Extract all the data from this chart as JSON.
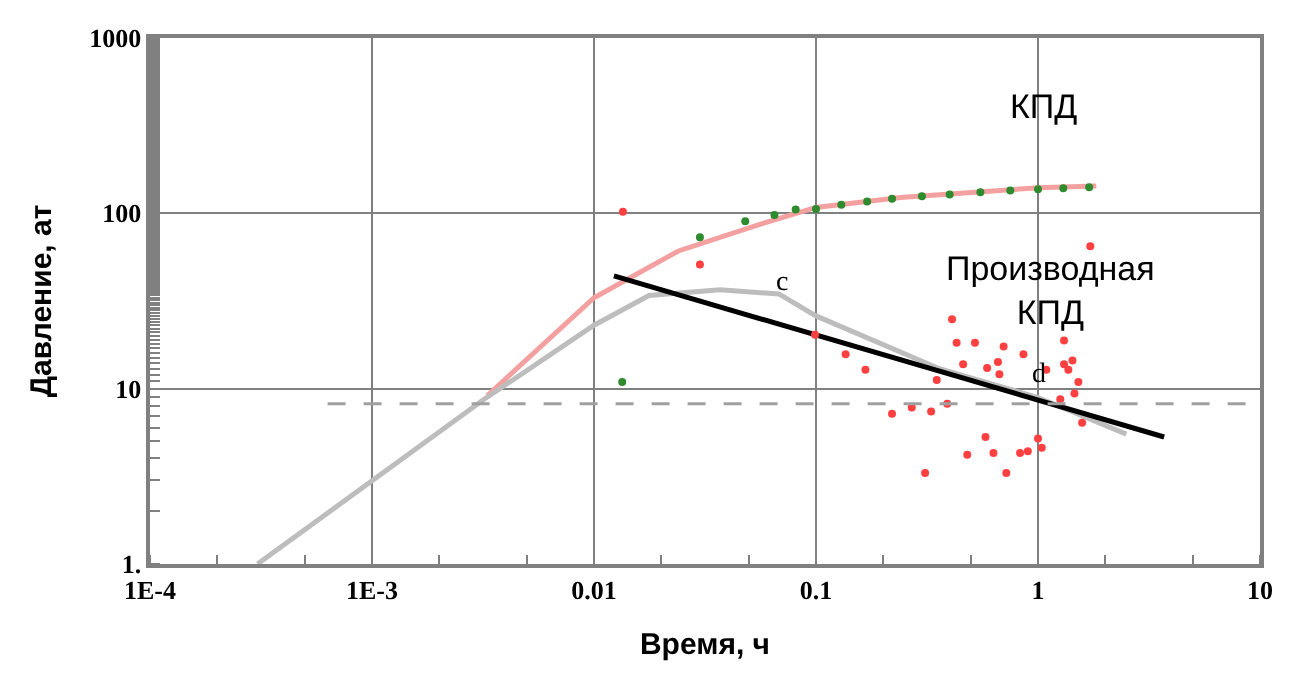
{
  "chart_data": {
    "type": "line",
    "xlabel": "Время, ч",
    "ylabel": "Давление, ат",
    "log": "xy",
    "grid": true,
    "xlim": [
      0.0001,
      10
    ],
    "ylim": [
      1,
      1000
    ],
    "xticks": [
      {
        "value": 0.0001,
        "label": "1E-4"
      },
      {
        "value": 0.001,
        "label": "1E-3"
      },
      0.01,
      0.1,
      1,
      10
    ],
    "yticks": [
      {
        "value": 1,
        "label": "1."
      },
      10,
      100,
      1000
    ],
    "series": [
      {
        "color": "#f4a0a0",
        "x": [
          0.0033,
          0.01,
          0.024,
          0.055,
          0.1,
          0.24,
          1,
          1.83
        ],
        "values": [
          9.1,
          33,
          61,
          86,
          108,
          123,
          140,
          143
        ]
      },
      {
        "color": "#bdbdbd",
        "x": [
          0.000305,
          0.0032,
          0.01,
          0.0177,
          0.037,
          0.068,
          0.1,
          0.36,
          1,
          2.5
        ],
        "values": [
          1,
          8.7,
          23,
          34,
          36.6,
          34.7,
          26,
          13,
          8.9,
          5.5
        ]
      },
      {
        "type": "scatter",
        "marker": "circle",
        "color": "#2e8b2e",
        "x": [
          0.0134,
          0.03,
          0.048,
          0.065,
          0.081,
          0.1,
          0.13,
          0.17,
          0.22,
          0.3,
          0.4,
          0.55,
          0.75,
          1.0,
          1.3,
          1.7
        ],
        "values": [
          10.9,
          73,
          90,
          98,
          105,
          106,
          112,
          117,
          121,
          125,
          128,
          132,
          135,
          137,
          139,
          141
        ]
      },
      {
        "type": "scatter",
        "marker": "circle",
        "color": "#ff4040",
        "x": [
          0.0135,
          0.03,
          0.099,
          0.136,
          0.167,
          0.41,
          0.43,
          0.52,
          0.7,
          0.86,
          1.31,
          1.43,
          0.46,
          0.59,
          0.66,
          0.67,
          1.09,
          1.31,
          1.37,
          1.52,
          1.46,
          1.26,
          0.35,
          0.39,
          0.22,
          0.27,
          0.33,
          0.58,
          0.63,
          0.48,
          0.83,
          0.9,
          1.04,
          1.0,
          0.72,
          0.31,
          1.58,
          1.72
        ],
        "values": [
          102,
          51,
          20.3,
          15.7,
          12.8,
          24.9,
          18.3,
          18.3,
          17.4,
          15.7,
          18.8,
          14.5,
          13.8,
          13.1,
          14.2,
          12.1,
          12.8,
          13.8,
          12.8,
          10.9,
          9.4,
          8.7,
          11.2,
          8.2,
          7.2,
          7.8,
          7.4,
          5.3,
          4.3,
          4.2,
          4.3,
          4.4,
          4.6,
          5.2,
          3.3,
          3.3,
          6.4,
          65
        ]
      },
      {
        "color": "#000000",
        "x": [
          0.0123,
          3.7
        ],
        "values": [
          44,
          5.3
        ]
      }
    ],
    "ref_lines": [
      {
        "axis": "y",
        "value": 8.2,
        "color": "#a0a0a0",
        "line_style": "dashed"
      }
    ],
    "annotations": [
      "КПД",
      "Производная\nКПД",
      {
        "text": "c",
        "x": 0.071,
        "y": 40
      },
      {
        "text": "d",
        "x": 1.0,
        "y": 12
      }
    ]
  }
}
